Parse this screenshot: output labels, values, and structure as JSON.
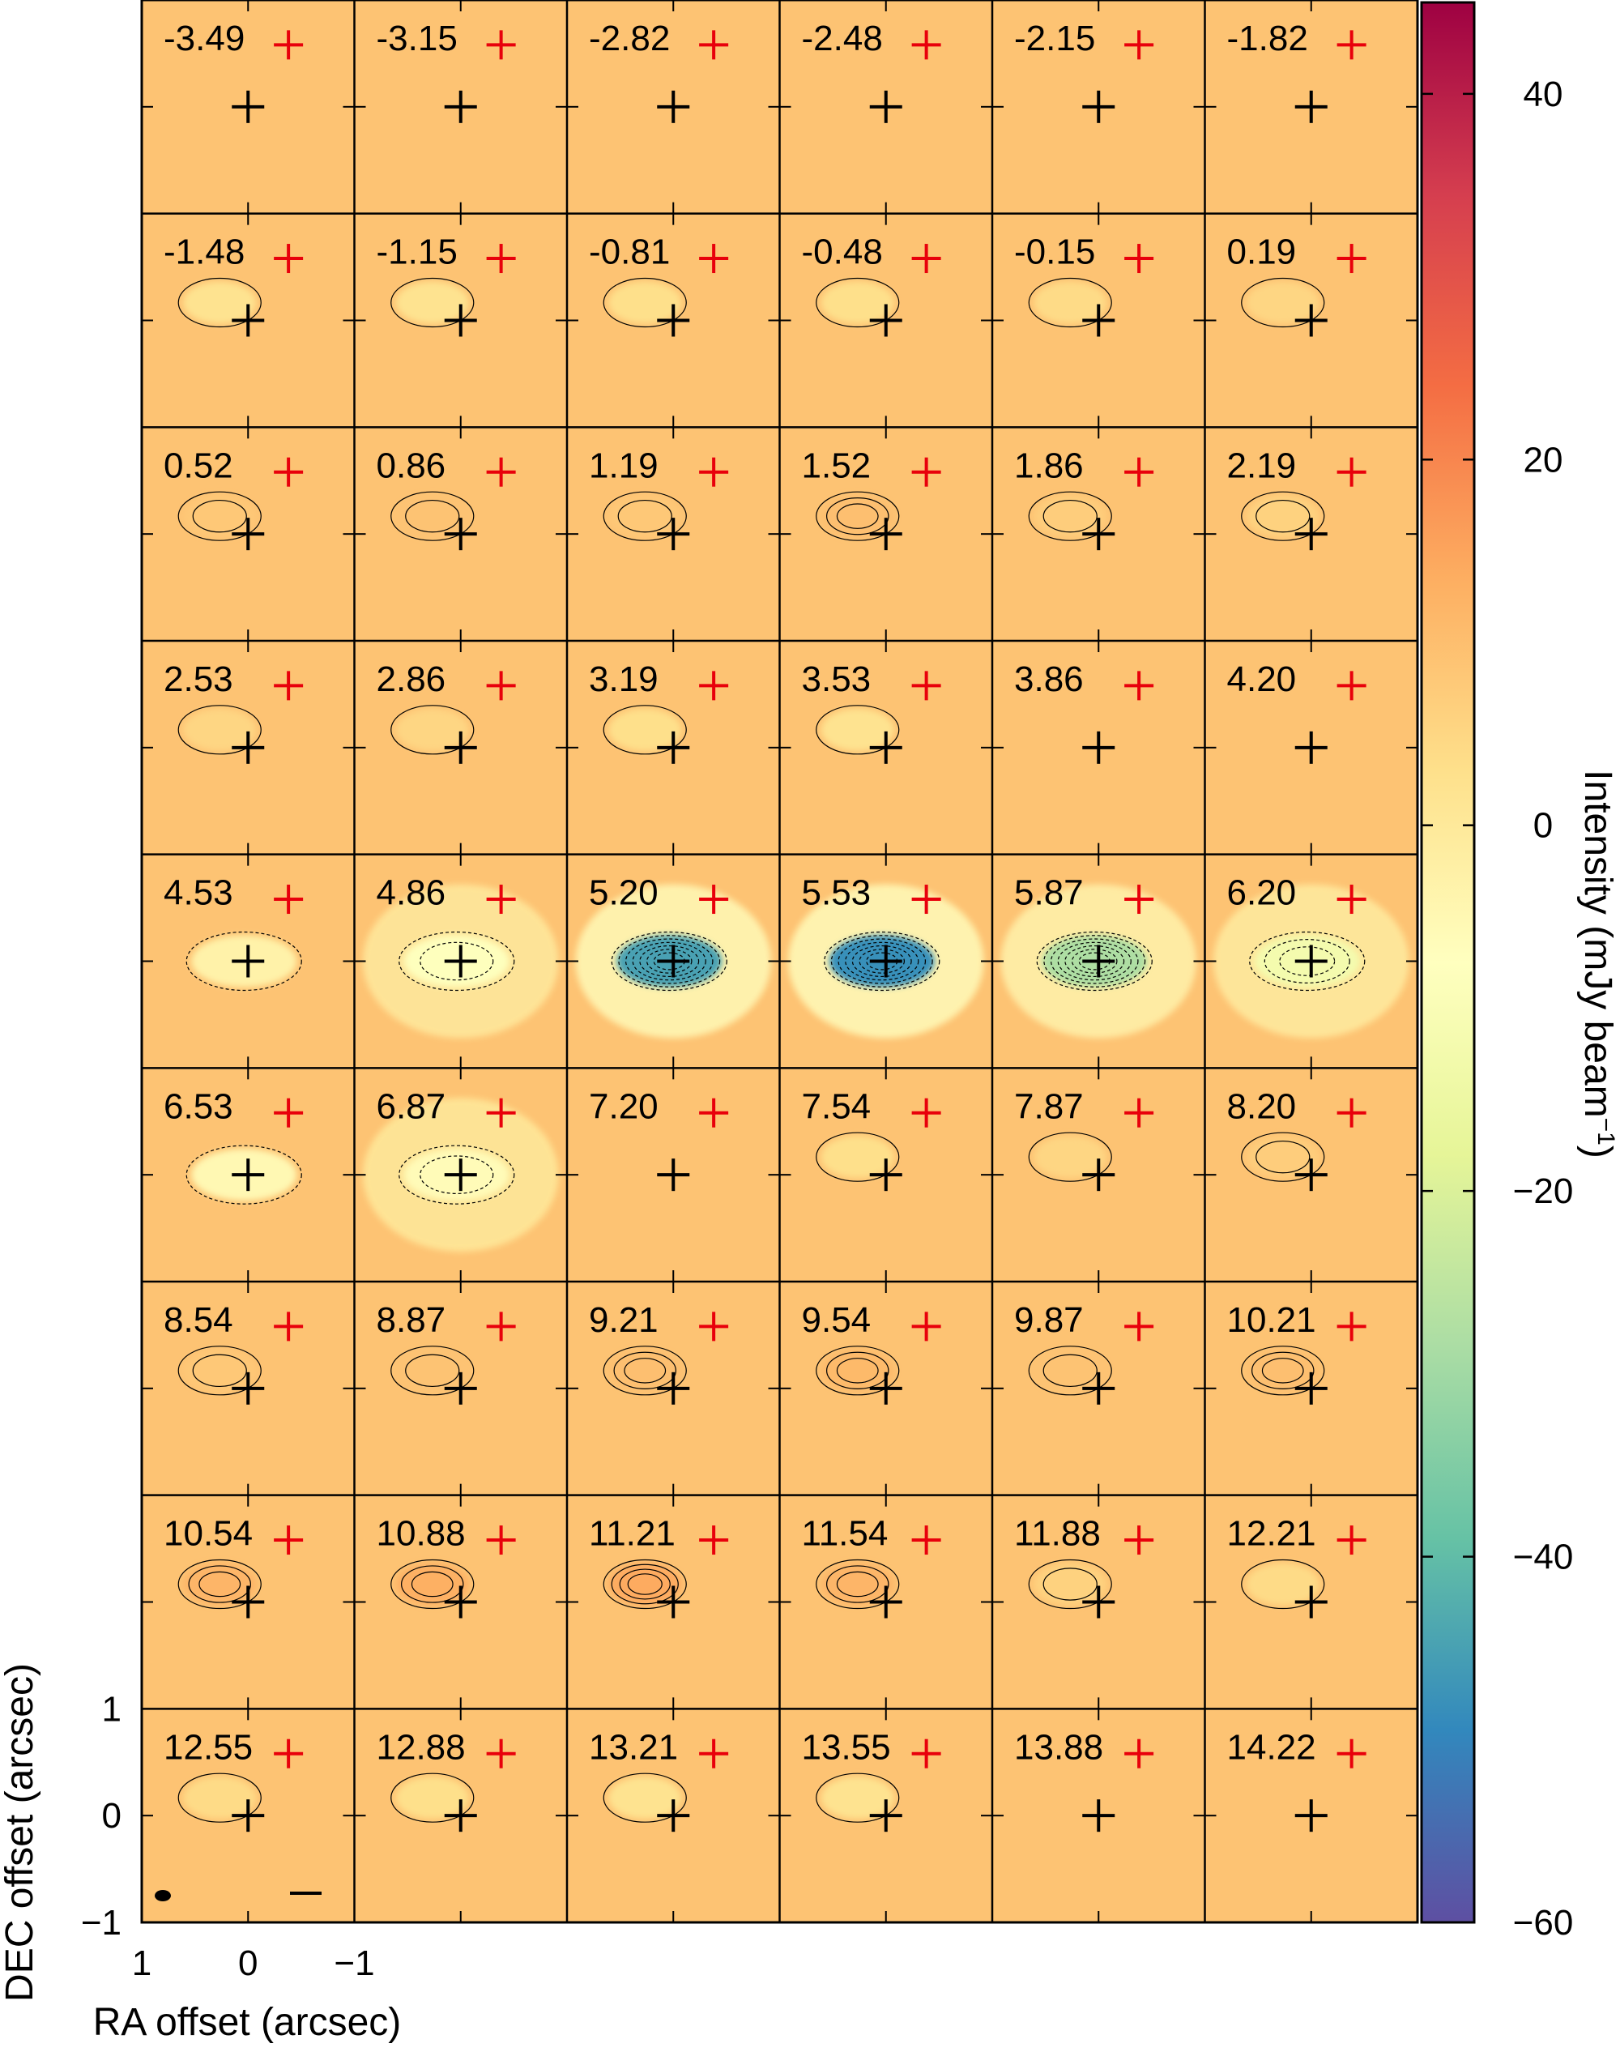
{
  "chart_data": {
    "type": "heatmap",
    "subtype": "channel-map-grid",
    "grid": {
      "rows": 9,
      "cols": 6
    },
    "panel_labels": [
      "-3.49",
      "-3.15",
      "-2.82",
      "-2.48",
      "-2.15",
      "-1.82",
      "-1.48",
      "-1.15",
      "-0.81",
      "-0.48",
      "-0.15",
      "0.19",
      "0.52",
      "0.86",
      "1.19",
      "1.52",
      "1.86",
      "2.19",
      "2.53",
      "2.86",
      "3.19",
      "3.53",
      "3.86",
      "4.20",
      "4.53",
      "4.86",
      "5.20",
      "5.53",
      "5.87",
      "6.20",
      "6.53",
      "6.87",
      "7.20",
      "7.54",
      "7.87",
      "8.20",
      "8.54",
      "8.87",
      "9.21",
      "9.54",
      "9.87",
      "10.21",
      "10.54",
      "10.88",
      "11.21",
      "11.54",
      "11.88",
      "12.21",
      "12.55",
      "12.88",
      "13.21",
      "13.55",
      "13.88",
      "14.22"
    ],
    "panel_intensity_peak_mjy": [
      0,
      0,
      0,
      0,
      0,
      0,
      2,
      2,
      3,
      3,
      4,
      5,
      8,
      9,
      8,
      10,
      7,
      6,
      5,
      5,
      3,
      2,
      1,
      1,
      -3,
      -8,
      -45,
      -48,
      -28,
      -12,
      -5,
      -6,
      1,
      3,
      5,
      7,
      8,
      9,
      10,
      11,
      9,
      10,
      12,
      13,
      14,
      12,
      6,
      4,
      4,
      3,
      2,
      2,
      1,
      1
    ],
    "xlabel": "RA offset (arcsec)",
    "ylabel": "DEC offset (arcsec)",
    "x_ticks": [
      "1",
      "0",
      "−1"
    ],
    "y_ticks": [
      "1",
      "0",
      "−1"
    ],
    "xlim": [
      1,
      -1
    ],
    "ylim": [
      -1,
      1
    ],
    "colorbar": {
      "label": "Intensity (mJy beam",
      "label_sup": "−1",
      "label_close": ")",
      "range": [
        -60,
        45
      ],
      "ticks": [
        {
          "value": 40,
          "label": "40"
        },
        {
          "value": 20,
          "label": "20"
        },
        {
          "value": 0,
          "label": "0"
        },
        {
          "value": -20,
          "label": "−20"
        },
        {
          "value": -40,
          "label": "−40"
        },
        {
          "value": -60,
          "label": "−60"
        }
      ],
      "colormap": "Spectral_r"
    },
    "markers": {
      "center": "black plus",
      "offset": "red plus"
    }
  }
}
